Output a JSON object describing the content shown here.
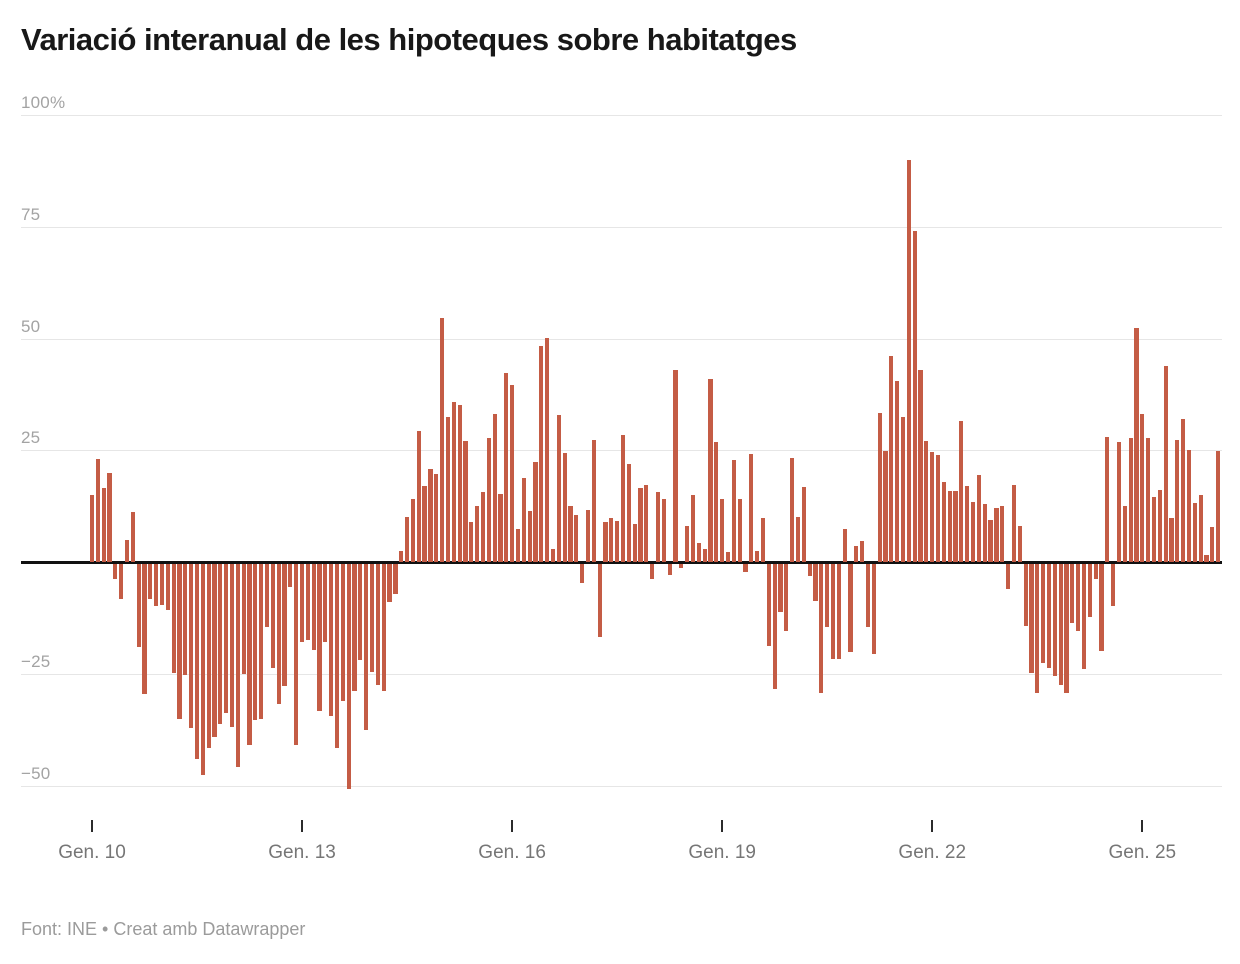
{
  "header": {
    "title": "Variació interanual de les hipoteques sobre habitatges"
  },
  "footer": {
    "source": "Font: INE • Creat amb Datawrapper"
  },
  "chart_data": {
    "type": "bar",
    "title": "Variació interanual de les hipoteques sobre habitatges",
    "unit": "percent",
    "bar_color": "#c45c45",
    "grid": "horizontal-lines",
    "legend_position": "none",
    "y_axis": {
      "range": [
        -62,
        107
      ],
      "ticks": [
        {
          "value": 100,
          "label": "100%"
        },
        {
          "value": 75,
          "label": "75"
        },
        {
          "value": 50,
          "label": "50"
        },
        {
          "value": 25,
          "label": "25"
        },
        {
          "value": 0,
          "label": ""
        },
        {
          "value": -25,
          "label": "−25"
        },
        {
          "value": -50,
          "label": "−50"
        }
      ]
    },
    "x_axis": {
      "start": "Gener 2010",
      "frequency": "monthly",
      "tick_labels": [
        "Gen. 10",
        "Gen. 13",
        "Gen. 16",
        "Gen. 19",
        "Gen. 22",
        "Gen. 25"
      ],
      "tick_indices": [
        0,
        36,
        72,
        108,
        144,
        180
      ]
    },
    "values": [
      15,
      23,
      16.5,
      20,
      -3.4,
      -8,
      5,
      11.2,
      -18.6,
      -29.3,
      -7.9,
      -9.6,
      -9.2,
      -10.4,
      -24.4,
      -34.8,
      -25,
      -36.7,
      -43.8,
      -47.4,
      -41.2,
      -38.8,
      -36,
      -33.5,
      -36.5,
      -45.6,
      -24.7,
      -40.5,
      -35,
      -34.8,
      -14.3,
      -23.3,
      -31.4,
      -27.3,
      -5.3,
      -40.5,
      -17.5,
      -17.1,
      -19.4,
      -32.9,
      -17.5,
      -34.1,
      -41.2,
      -30.7,
      -50.5,
      -28.5,
      -21.7,
      -37.2,
      -24.3,
      -27.1,
      -28.5,
      -8.6,
      -6.9,
      2.5,
      10,
      14.1,
      29.4,
      17.1,
      20.8,
      19.7,
      54.5,
      32.4,
      35.8,
      35.1,
      27,
      9,
      12.6,
      15.7,
      27.7,
      33.2,
      15.2,
      42.3,
      39.5,
      7.4,
      18.9,
      11.4,
      22.4,
      48.3,
      50.2,
      2.9,
      32.9,
      24.4,
      12.6,
      10.5,
      -4.4,
      11.7,
      27.2,
      -16.5,
      8.9,
      9.8,
      9.2,
      28.3,
      22,
      8.6,
      16.5,
      17.3,
      -3.4,
      15.6,
      14.1,
      -2.5,
      43,
      -1.1,
      8,
      15,
      4.3,
      3,
      41,
      26.8,
      14.1,
      2.3,
      22.9,
      14.1,
      -2,
      24.1,
      2.5,
      9.8,
      -18.4,
      -28,
      -10.8,
      -15,
      23.3,
      10,
      16.8,
      -2.9,
      -8.3,
      -28.9,
      -14.3,
      -21.4,
      -21.3,
      7.3,
      -19.9,
      3.5,
      4.7,
      -14.3,
      -20.3,
      33.4,
      24.9,
      46,
      40.5,
      32.5,
      90,
      74,
      43,
      27,
      24.5,
      24,
      18,
      15.8,
      15.8,
      31.6,
      17,
      13.5,
      19.5,
      13,
      9.5,
      12,
      12.5,
      -5.6,
      17.3,
      8,
      -13.9,
      -24.4,
      -28.9,
      -22.2,
      -23.3,
      -25.2,
      -27.1,
      -28.9,
      -13.2,
      -15,
      -23.5,
      -12,
      -3.5,
      -19.5,
      28,
      -9.4,
      26.9,
      12.5,
      27.8,
      52.3,
      33.1,
      27.7,
      14.5,
      16,
      43.8,
      9.8,
      27.3,
      32,
      25,
      13.3,
      15,
      1.5,
      7.9,
      24.8
    ]
  }
}
